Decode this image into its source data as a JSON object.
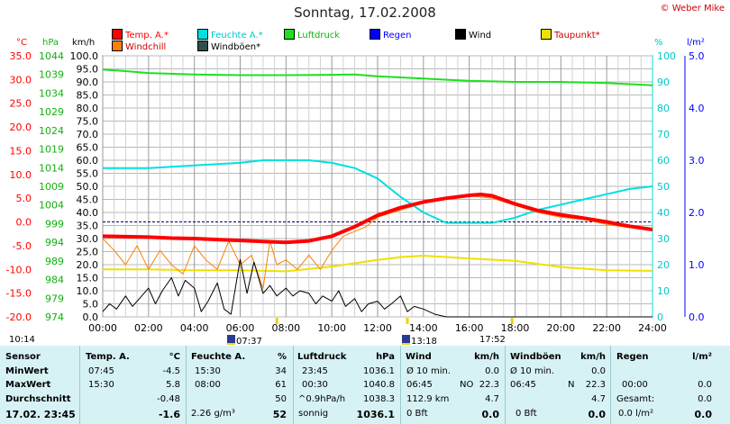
{
  "title": "Sonntag, 17.02.2008",
  "copyright": "© Weber Mike",
  "colors": {
    "temp": "#ff0000",
    "feuchte": "#00e0e0",
    "luftdruck": "#1ee01e",
    "regen": "#0000ff",
    "wind": "#000000",
    "taupunkt": "#f0e000",
    "windchill": "#ff8000",
    "windboen": "#2f4f4f",
    "grid": "#aaaaaa"
  },
  "legend": [
    {
      "label": "Temp. A.*",
      "color": "#ff0000"
    },
    {
      "label": "Feuchte A.*",
      "color": "#00e0e0"
    },
    {
      "label": "Luftdruck",
      "color": "#1ee01e"
    },
    {
      "label": "Regen",
      "color": "#0000ff"
    },
    {
      "label": "Wind",
      "color": "#000000"
    },
    {
      "label": "Taupunkt*",
      "color": "#f0e000"
    },
    {
      "label": "Windchill",
      "color": "#ff8000"
    },
    {
      "label": "Windböen*",
      "color": "#2f4f4f"
    }
  ],
  "units": {
    "temp": "°C",
    "pressure": "hPa",
    "wind": "km/h",
    "humidity": "%",
    "rain": "l/m²"
  },
  "events": {
    "left": "10:14",
    "e1": "07:37",
    "e2": "13:18",
    "e3": "17:52"
  },
  "chart_data": {
    "type": "line",
    "xlabel": "",
    "x_ticks": [
      "00:00",
      "02:00",
      "04:00",
      "06:00",
      "08:00",
      "10:00",
      "12:00",
      "14:00",
      "16:00",
      "18:00",
      "20:00",
      "22:00",
      "24:00"
    ],
    "axes": {
      "temp": {
        "ticks": [
          "35.0",
          "30.0",
          "25.0",
          "20.0",
          "15.0",
          "10.0",
          "5.0",
          "0.0",
          "-5.0",
          "-10.0",
          "-15.0",
          "-20.0"
        ],
        "range": [
          -20,
          35
        ]
      },
      "pressure": {
        "ticks": [
          "1044",
          "1039",
          "1034",
          "1029",
          "1024",
          "1019",
          "1014",
          "1009",
          "1004",
          "999",
          "994",
          "989",
          "984",
          "979",
          "974"
        ],
        "range": [
          974,
          1044
        ]
      },
      "wind": {
        "ticks": [
          "100.0",
          "95.0",
          "90.0",
          "85.0",
          "80.0",
          "75.0",
          "70.0",
          "65.0",
          "60.0",
          "55.0",
          "50.0",
          "45.0",
          "40.0",
          "35.0",
          "30.0",
          "25.0",
          "20.0",
          "15.0",
          "10.0",
          "5.0",
          "0.0"
        ],
        "range": [
          0,
          100
        ]
      },
      "humidity": {
        "ticks": [
          "100",
          "90",
          "80",
          "70",
          "60",
          "50",
          "40",
          "30",
          "20",
          "10",
          "0"
        ],
        "range": [
          0,
          100
        ]
      },
      "rain": {
        "ticks": [
          "5.0",
          "4.0",
          "3.0",
          "2.0",
          "1.0",
          "0.0"
        ],
        "range": [
          0,
          5
        ]
      }
    },
    "series": [
      {
        "name": "Luftdruck",
        "axis": "pressure",
        "x": [
          0,
          1,
          2,
          4,
          6,
          8,
          10,
          11,
          12,
          14,
          16,
          18,
          20,
          22,
          24
        ],
        "y": [
          1040.3,
          1039.9,
          1039.4,
          1039.0,
          1038.8,
          1038.8,
          1038.9,
          1039.0,
          1038.5,
          1037.9,
          1037.3,
          1037.0,
          1037.0,
          1036.7,
          1036.1
        ]
      },
      {
        "name": "Feuchte A.",
        "axis": "humidity",
        "x": [
          0,
          2,
          4,
          6,
          7,
          8,
          9,
          10,
          11,
          12,
          13,
          14,
          15,
          16,
          17,
          18,
          19,
          20,
          21,
          22,
          23,
          24
        ],
        "y": [
          57,
          57,
          58,
          59,
          60,
          60,
          60,
          59,
          57,
          53,
          46,
          40,
          36,
          36,
          36,
          38,
          41,
          43,
          45,
          47,
          49,
          50
        ],
        "value_suffix": " %"
      },
      {
        "name": "Temp. A.",
        "axis": "temp",
        "x": [
          0,
          1,
          2,
          3,
          4,
          5,
          6,
          7,
          8,
          9,
          10,
          11,
          12,
          13,
          14,
          15,
          16,
          16.5,
          17,
          18,
          19,
          20,
          21,
          22,
          23,
          24
        ],
        "y": [
          -3.0,
          -3.1,
          -3.2,
          -3.4,
          -3.5,
          -3.7,
          -3.9,
          -4.1,
          -4.3,
          -4.0,
          -3.0,
          -1.0,
          1.4,
          3.0,
          4.2,
          5.0,
          5.6,
          5.8,
          5.5,
          3.8,
          2.4,
          1.5,
          0.8,
          0.0,
          -0.9,
          -1.6
        ]
      },
      {
        "name": "Windchill",
        "axis": "temp",
        "x": [
          0,
          0.5,
          1,
          1.5,
          2,
          2.5,
          3,
          3.5,
          4,
          4.5,
          5,
          5.5,
          6,
          6.5,
          7,
          7.3,
          7.6,
          8,
          8.5,
          9,
          9.5,
          10,
          10.5,
          11,
          11.5,
          12,
          13,
          14,
          14.5,
          15,
          16,
          17,
          18,
          19,
          20,
          21,
          22,
          23,
          24
        ],
        "y": [
          -3.5,
          -6,
          -9,
          -5,
          -10,
          -6,
          -9,
          -11,
          -5,
          -8,
          -10,
          -4,
          -9,
          -7,
          -14,
          -4,
          -9,
          -8,
          -10,
          -7,
          -10,
          -6,
          -3,
          -2,
          -1,
          1,
          2.5,
          4,
          4.5,
          5,
          5.5,
          5,
          3.5,
          2,
          1,
          0.5,
          -0.5,
          -1.2,
          -1.6
        ]
      },
      {
        "name": "Taupunkt",
        "axis": "temp",
        "x": [
          0,
          2,
          4,
          6,
          8,
          10,
          12,
          13,
          14,
          16,
          18,
          20,
          22,
          24
        ],
        "y": [
          -10.0,
          -10.0,
          -10.2,
          -10.2,
          -10.4,
          -9.4,
          -8.0,
          -7.4,
          -7.1,
          -7.7,
          -8.2,
          -9.5,
          -10.2,
          -10.3
        ]
      },
      {
        "name": "Wind",
        "axis": "wind",
        "x": [
          0,
          0.3,
          0.6,
          1,
          1.3,
          1.6,
          2,
          2.3,
          2.6,
          3,
          3.3,
          3.6,
          4,
          4.3,
          4.6,
          5,
          5.3,
          5.6,
          6,
          6.3,
          6.6,
          7,
          7.3,
          7.6,
          8,
          8.3,
          8.6,
          9,
          9.3,
          9.6,
          10,
          10.3,
          10.6,
          11,
          11.3,
          11.6,
          12,
          12.3,
          12.6,
          13,
          13.3,
          13.6,
          14,
          14.5,
          15,
          16,
          18,
          24
        ],
        "y": [
          2,
          5,
          3,
          8,
          4,
          7,
          11,
          5,
          10,
          15,
          8,
          14,
          11,
          2,
          6,
          13,
          3,
          1,
          22,
          9,
          21,
          9,
          12,
          8,
          11,
          8,
          10,
          9,
          5,
          8,
          6,
          10,
          4,
          7,
          2,
          5,
          6,
          3,
          5,
          8,
          2,
          4,
          3,
          1,
          0,
          0,
          0,
          0
        ]
      }
    ]
  },
  "table": {
    "headers": [
      "Sensor",
      "Temp. A.",
      "°C",
      "Feuchte A.",
      "%",
      "Luftdruck",
      "hPa",
      "Wind",
      "km/h",
      "Windböen",
      "km/h",
      "Regen",
      "l/m²"
    ],
    "rows": [
      {
        "label": "MinWert",
        "t_time": "07:45",
        "t_val": "-4.5",
        "f_time": "15:30",
        "f_val": "34",
        "p_time": "23:45",
        "p_val": "1036.1",
        "w_lbl": "Ø 10 min.",
        "w_dir": "",
        "w_val": "0.0",
        "b_lbl": "Ø 10 min.",
        "b_dir": "",
        "b_val": "0.0",
        "r_lbl": "",
        "r_val": ""
      },
      {
        "label": "MaxWert",
        "t_time": "15:30",
        "t_val": "5.8",
        "f_time": "08:00",
        "f_val": "61",
        "p_time": "00:30",
        "p_val": "1040.8",
        "w_lbl": "06:45",
        "w_dir": "NO",
        "w_val": "22.3",
        "b_lbl": "06:45",
        "b_dir": "N",
        "b_val": "22.3",
        "r_lbl": "00:00",
        "r_val": "0.0"
      },
      {
        "label": "Durchschnitt",
        "t_time": "",
        "t_val": "-0.48",
        "f_time": "",
        "f_val": "50",
        "p_time": "^0.9hPa/h",
        "p_val": "1038.3",
        "w_lbl": "112.9 km",
        "w_dir": "",
        "w_val": "4.7",
        "b_lbl": "",
        "b_dir": "",
        "b_val": "4.7",
        "r_lbl": "Gesamt:",
        "r_val": "0.0"
      },
      {
        "label": "17.02. 23:45",
        "t_time": "",
        "t_val": "-1.6",
        "f_time": "2.26 g/m³",
        "f_val": "52",
        "p_time": "sonnig",
        "p_val": "1036.1",
        "w_lbl": "0 Bft",
        "w_dir": "",
        "w_val": "0.0",
        "b_lbl": "0 Bft",
        "b_dir": "",
        "b_val": "0.0",
        "r_lbl": "0.0 l/m²",
        "r_val": "0.0"
      }
    ]
  }
}
